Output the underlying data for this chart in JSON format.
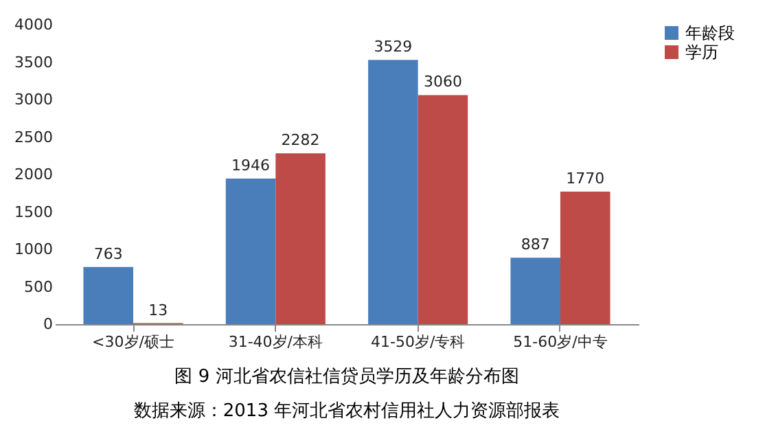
{
  "chart_data": {
    "type": "bar",
    "title": "图 9 河北省农信社信贷员学历及年龄分布图",
    "annotations": [
      "数据来源：2013 年河北省农村信用社人力资源部报表"
    ],
    "categories": [
      "<30岁/硕士",
      "31-40岁/本科",
      "41-50岁/专科",
      "51-60岁/中专"
    ],
    "series": [
      {
        "name": "年龄段",
        "color": "#4a7ebb",
        "values": [
          763,
          1946,
          3529,
          887
        ]
      },
      {
        "name": "学历",
        "color": "#be4b48",
        "values": [
          13,
          2282,
          3060,
          1770
        ]
      }
    ],
    "ylim": [
      0,
      4000
    ],
    "yticks": [
      0,
      500,
      1000,
      1500,
      2000,
      2500,
      3000,
      3500,
      4000
    ],
    "data_labels": true,
    "legend": "right",
    "grid": false
  }
}
